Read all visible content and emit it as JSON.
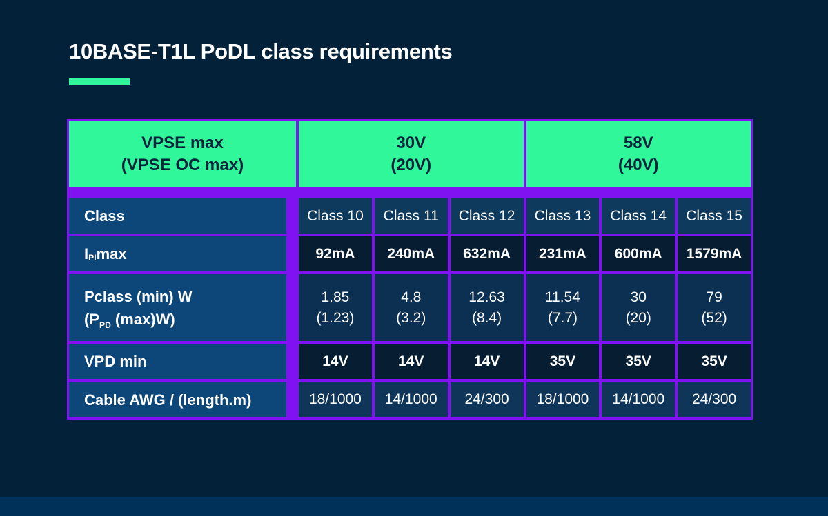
{
  "page": {
    "title": "10BASE-T1L PoDL class requirements",
    "colors": {
      "background": "#03223A",
      "footer_bar": "#003158",
      "accent_green": "#31F79B",
      "border_purple": "#8012F2",
      "label_cell_blue": "#0D4678",
      "row_light_navy": "#0E3A5E",
      "row_dark_navy": "#061D32",
      "header_text": "#04223C",
      "body_text": "#FFFFFF"
    }
  },
  "table": {
    "header": {
      "vpse_line1": "VPSE max",
      "vpse_line2": "(VPSE OC max)",
      "g30_line1": "30V",
      "g30_line2": "(20V)",
      "g58_line1": "58V",
      "g58_line2": "(40V)"
    },
    "rows": {
      "class": {
        "label": "Class",
        "values": [
          "Class 10",
          "Class 11",
          "Class 12",
          "Class 13",
          "Class 14",
          "Class 15"
        ]
      },
      "ipi": {
        "label_pre": "I",
        "label_sub": "PI",
        "label_post": " max",
        "values": [
          "92mA",
          "240mA",
          "632mA",
          "231mA",
          "600mA",
          "1579mA"
        ]
      },
      "pclass": {
        "label_line1": "Pclass (min) W",
        "label_line2_pre": "(P",
        "label_line2_sub": "PD",
        "label_line2_post": " (max)W)",
        "values_top": [
          "1.85",
          "4.8",
          "12.63",
          "11.54",
          "30",
          "79"
        ],
        "values_bottom": [
          "(1.23)",
          "(3.2)",
          "(8.4)",
          "(7.7)",
          "(20)",
          "(52)"
        ]
      },
      "vpd": {
        "label": "VPD min",
        "values": [
          "14V",
          "14V",
          "14V",
          "35V",
          "35V",
          "35V"
        ]
      },
      "cable": {
        "label": "Cable AWG / (length.m)",
        "values": [
          "18/1000",
          "14/1000",
          "24/300",
          "18/1000",
          "14/1000",
          "24/300"
        ]
      }
    }
  },
  "chart_data": {
    "type": "table",
    "title": "10BASE-T1L PoDL class requirements",
    "corner_header": "VPSE max (VPSE OC max)",
    "column_groups": [
      {
        "label": "30V (20V)",
        "columns": [
          "Class 10",
          "Class 11",
          "Class 12"
        ]
      },
      {
        "label": "58V (40V)",
        "columns": [
          "Class 13",
          "Class 14",
          "Class 15"
        ]
      }
    ],
    "row_headers": [
      "Class",
      "IPI max",
      "Pclass (min) W (PPD (max)W)",
      "VPD min",
      "Cable AWG / (length.m)"
    ],
    "cells": [
      [
        "Class 10",
        "Class 11",
        "Class 12",
        "Class 13",
        "Class 14",
        "Class 15"
      ],
      [
        "92mA",
        "240mA",
        "632mA",
        "231mA",
        "600mA",
        "1579mA"
      ],
      [
        "1.85 (1.23)",
        "4.8 (3.2)",
        "12.63 (8.4)",
        "11.54 (7.7)",
        "30 (20)",
        "79 (52)"
      ],
      [
        "14V",
        "14V",
        "14V",
        "35V",
        "35V",
        "35V"
      ],
      [
        "18/1000",
        "14/1000",
        "24/300",
        "18/1000",
        "14/1000",
        "24/300"
      ]
    ]
  }
}
